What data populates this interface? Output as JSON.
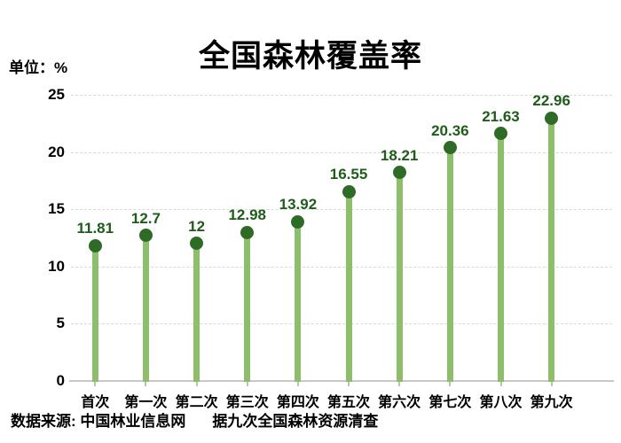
{
  "header": {
    "title": "全国森林覆盖率",
    "unit_label": "单位：%"
  },
  "footer": {
    "source": "数据来源: 中国林业信息网",
    "note": "据九次全国森林资源清查"
  },
  "chart_data": {
    "type": "bar",
    "variant": "lollipop",
    "title": "全国森林覆盖率",
    "unit": "%",
    "categories": [
      "首次",
      "第一次",
      "第二次",
      "第三次",
      "第四次",
      "第五次",
      "第六次",
      "第七次",
      "第八次",
      "第九次"
    ],
    "values": [
      11.81,
      12.7,
      12,
      12.98,
      13.92,
      16.55,
      18.21,
      20.36,
      21.63,
      22.96
    ],
    "value_labels": [
      "11.81",
      "12.7",
      "12",
      "12.98",
      "13.92",
      "16.55",
      "18.21",
      "20.36",
      "21.63",
      "22.96"
    ],
    "ylim": [
      0,
      25
    ],
    "yticks": [
      0,
      5,
      10,
      15,
      20,
      25
    ],
    "xlabel": "",
    "ylabel": "单位：%",
    "grid": "horizontal-dashed",
    "legend": "none",
    "colors": {
      "stem": "#8cbe6b",
      "dot": "#2d6b26",
      "value_label": "#1f5c1a",
      "axis_text": "#000000",
      "gridline": "#d9d9d9",
      "axis_line": "#c9c9c9"
    }
  }
}
